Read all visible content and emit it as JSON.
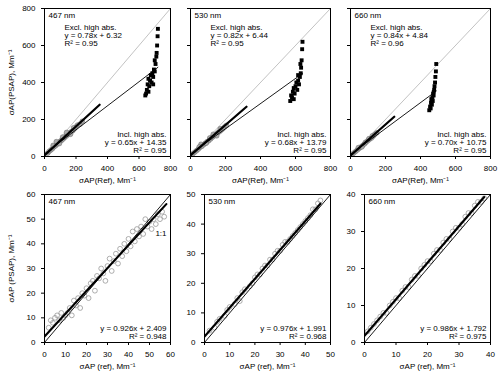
{
  "chart_data": [
    {
      "type": "scatter",
      "xlim": [
        0,
        800
      ],
      "ylim": [
        0,
        800
      ],
      "xticks": [
        0,
        200,
        400,
        600,
        800
      ],
      "yticks": [
        0,
        200,
        400,
        600,
        800
      ],
      "xlabel": "σAP(Ref), Mm⁻¹",
      "ylabel": "σAP(PSAP), Mm⁻¹",
      "annotations": {
        "panel": "467 nm",
        "upper": [
          "Excl. high abs.",
          "y = 0.78x + 6.32",
          "R² = 0.95"
        ],
        "lower": [
          "Incl. high abs.",
          "y = 0.65x + 14.35",
          "R² = 0.95"
        ]
      },
      "series": [
        {
          "type": "line",
          "line_style": "solid",
          "color": "#bbbbbb",
          "x": [
            0,
            800
          ],
          "values": [
            0,
            800
          ]
        },
        {
          "type": "scatter",
          "marker": "circle",
          "color": "#aaaaaa",
          "x": [
            20,
            30,
            40,
            50,
            60,
            70,
            80,
            90,
            100,
            110,
            120,
            130,
            140,
            150,
            160,
            170,
            180,
            190,
            200,
            75,
            95,
            140,
            165,
            185,
            55,
            115,
            210,
            225,
            240
          ],
          "values": [
            18,
            28,
            35,
            42,
            52,
            58,
            66,
            75,
            82,
            88,
            96,
            104,
            112,
            120,
            128,
            134,
            140,
            150,
            160,
            80,
            70,
            130,
            120,
            155,
            60,
            105,
            170,
            175,
            190
          ]
        },
        {
          "type": "scatter",
          "marker": "square",
          "color": "#000000",
          "x": [
            640,
            650,
            655,
            660,
            665,
            670,
            675,
            680,
            685,
            690,
            695,
            700,
            705,
            700,
            710,
            715,
            718,
            720,
            660,
            690,
            712,
            645
          ],
          "values": [
            330,
            360,
            390,
            420,
            380,
            410,
            440,
            400,
            450,
            430,
            470,
            460,
            500,
            520,
            540,
            600,
            650,
            690,
            350,
            390,
            560,
            340
          ]
        },
        {
          "type": "line",
          "line_style": "thick",
          "color": "#000000",
          "x": [
            0,
            350
          ],
          "values": [
            6,
            280
          ]
        },
        {
          "type": "line",
          "line_style": "solid",
          "color": "#000000",
          "x": [
            0,
            720
          ],
          "values": [
            14,
            482
          ]
        }
      ]
    },
    {
      "type": "scatter",
      "xlim": [
        0,
        800
      ],
      "ylim": [
        0,
        800
      ],
      "xticks": [
        0,
        200,
        400,
        600,
        800
      ],
      "yticks": [
        0,
        200,
        400,
        600,
        800
      ],
      "tick_labels": "x",
      "xlabel": "σAP(Ref), Mm⁻¹",
      "annotations": {
        "panel": "530 nm",
        "upper": [
          "Excl. high abs.",
          "y = 0.82x + 6.44",
          "R² = 0.95"
        ],
        "lower": [
          "Incl. high abs.",
          "y = 0.68x + 13.79",
          "R² = 0.95"
        ]
      },
      "series": [
        {
          "type": "line",
          "line_style": "solid",
          "color": "#bbbbbb",
          "x": [
            0,
            800
          ],
          "values": [
            0,
            800
          ]
        },
        {
          "type": "scatter",
          "marker": "circle",
          "color": "#aaaaaa",
          "x": [
            15,
            25,
            35,
            45,
            55,
            65,
            75,
            85,
            95,
            105,
            115,
            125,
            135,
            145,
            155,
            165,
            175,
            185,
            60,
            90,
            130,
            150,
            170,
            50,
            110,
            195,
            205
          ],
          "values": [
            16,
            24,
            32,
            40,
            50,
            55,
            64,
            72,
            80,
            86,
            95,
            104,
            112,
            118,
            128,
            134,
            142,
            150,
            66,
            72,
            120,
            112,
            150,
            52,
            100,
            160,
            168
          ]
        },
        {
          "type": "scatter",
          "marker": "square",
          "color": "#000000",
          "x": [
            570,
            580,
            585,
            590,
            595,
            600,
            605,
            610,
            615,
            620,
            625,
            630,
            632,
            635,
            638,
            640,
            590,
            615,
            628,
            575
          ],
          "values": [
            300,
            320,
            350,
            370,
            340,
            380,
            400,
            360,
            410,
            390,
            430,
            450,
            480,
            520,
            580,
            620,
            310,
            440,
            500,
            330
          ]
        },
        {
          "type": "line",
          "line_style": "thick",
          "color": "#000000",
          "x": [
            0,
            320
          ],
          "values": [
            6,
            269
          ]
        },
        {
          "type": "line",
          "line_style": "solid",
          "color": "#000000",
          "x": [
            0,
            640
          ],
          "values": [
            14,
            449
          ]
        }
      ]
    },
    {
      "type": "scatter",
      "xlim": [
        0,
        800
      ],
      "ylim": [
        0,
        800
      ],
      "xticks": [
        0,
        200,
        400,
        600,
        800
      ],
      "yticks": [
        0,
        200,
        400,
        600,
        800
      ],
      "tick_labels": "x",
      "xlabel": "σAP(Ref), Mm⁻¹",
      "annotations": {
        "panel": "660 nm",
        "upper": [
          "Excl. high abs.",
          "y = 0.84x + 4.84",
          "R² = 0.96"
        ],
        "lower": [
          "Incl. high abs.",
          "y = 0.70x + 10.75",
          "R² = 0.95"
        ]
      },
      "series": [
        {
          "type": "line",
          "line_style": "solid",
          "color": "#bbbbbb",
          "x": [
            0,
            800
          ],
          "values": [
            0,
            800
          ]
        },
        {
          "type": "scatter",
          "marker": "circle",
          "color": "#aaaaaa",
          "x": [
            10,
            20,
            30,
            40,
            50,
            60,
            70,
            80,
            90,
            100,
            110,
            120,
            130,
            45,
            65,
            85,
            105,
            125,
            140,
            150
          ],
          "values": [
            12,
            20,
            28,
            36,
            44,
            52,
            60,
            68,
            78,
            86,
            94,
            100,
            110,
            48,
            52,
            76,
            96,
            112,
            120,
            128
          ]
        },
        {
          "type": "scatter",
          "marker": "square",
          "color": "#000000",
          "x": [
            450,
            455,
            460,
            462,
            465,
            468,
            470,
            472,
            475,
            478,
            480,
            483,
            485,
            488,
            490,
            458,
            476
          ],
          "values": [
            250,
            270,
            290,
            310,
            280,
            320,
            300,
            340,
            330,
            360,
            380,
            400,
            430,
            460,
            500,
            260,
            350
          ]
        },
        {
          "type": "line",
          "line_style": "thick",
          "color": "#000000",
          "x": [
            0,
            250
          ],
          "values": [
            5,
            215
          ]
        },
        {
          "type": "line",
          "line_style": "solid",
          "color": "#000000",
          "x": [
            0,
            490
          ],
          "values": [
            11,
            354
          ]
        }
      ]
    },
    {
      "type": "scatter",
      "xlim": [
        0,
        60
      ],
      "ylim": [
        0,
        60
      ],
      "xticks": [
        0,
        10,
        20,
        30,
        40,
        50,
        60
      ],
      "yticks": [
        0,
        10,
        20,
        30,
        40,
        50,
        60
      ],
      "xlabel": "σAP (ref), Mm⁻¹",
      "ylabel": "σAP (PSAP), Mm⁻¹",
      "annotations": {
        "panel": "467 nm",
        "line": "1:1",
        "lower": [
          "y = 0.926x + 2.409",
          "R² = 0.948"
        ]
      },
      "series": [
        {
          "type": "scatter",
          "marker": "open-circle",
          "color": "#999999",
          "x": [
            2,
            3,
            4,
            5,
            6,
            7,
            8,
            9,
            10,
            11,
            12,
            13,
            14,
            15,
            16,
            17,
            18,
            19,
            20,
            21,
            22,
            23,
            24,
            25,
            26,
            27,
            28,
            29,
            30,
            31,
            32,
            33,
            34,
            35,
            36,
            37,
            38,
            39,
            40,
            41,
            42,
            43,
            44,
            45,
            46,
            47,
            48,
            49,
            50,
            51,
            52,
            53,
            54,
            55,
            56,
            57
          ],
          "values": [
            6,
            9,
            8,
            10,
            11,
            9,
            12,
            10,
            11,
            12,
            14,
            11,
            17,
            15,
            18,
            14,
            20,
            19,
            22,
            18,
            24,
            25,
            21,
            27,
            26,
            30,
            28,
            25,
            31,
            34,
            29,
            33,
            36,
            32,
            38,
            35,
            40,
            37,
            42,
            39,
            45,
            41,
            46,
            43,
            47,
            44,
            50,
            47,
            49,
            46,
            50,
            48,
            52,
            50,
            53,
            51
          ]
        },
        {
          "type": "line",
          "line_style": "solid",
          "color": "#000000",
          "x": [
            0,
            60
          ],
          "values": [
            0,
            60
          ]
        },
        {
          "type": "line",
          "line_style": "thick",
          "color": "#000000",
          "x": [
            0,
            58
          ],
          "values": [
            2.4,
            56.1
          ]
        }
      ]
    },
    {
      "type": "scatter",
      "xlim": [
        0,
        50
      ],
      "ylim": [
        0,
        50
      ],
      "xticks": [
        0,
        10,
        20,
        30,
        40,
        50
      ],
      "yticks": [
        0,
        10,
        20,
        30,
        40,
        50
      ],
      "xlabel": "σAP (ref), Mm⁻¹",
      "annotations": {
        "panel": "530 nm",
        "lower": [
          "y = 0.976x + 1.991",
          "R² = 0.968"
        ]
      },
      "series": [
        {
          "type": "scatter",
          "marker": "open-circle",
          "color": "#999999",
          "x": [
            2,
            4,
            5,
            6,
            8,
            9,
            10,
            12,
            13,
            14,
            15,
            16,
            18,
            19,
            20,
            21,
            22,
            23,
            24,
            25,
            26,
            27,
            28,
            29,
            30,
            31,
            32,
            33,
            34,
            35,
            36,
            37,
            38,
            39,
            40,
            41,
            42,
            43,
            44,
            45,
            46
          ],
          "values": [
            4,
            5,
            7,
            8,
            9,
            11,
            12,
            13,
            15,
            14,
            17,
            18,
            19,
            20,
            22,
            23,
            23,
            25,
            26,
            26,
            28,
            28,
            30,
            31,
            31,
            33,
            34,
            34,
            35,
            36,
            37,
            38,
            39,
            40,
            41,
            42,
            43,
            45,
            45,
            47,
            48
          ]
        },
        {
          "type": "line",
          "line_style": "solid",
          "color": "#000000",
          "x": [
            0,
            50
          ],
          "values": [
            0,
            50
          ]
        },
        {
          "type": "line",
          "line_style": "thick",
          "color": "#000000",
          "x": [
            0,
            46
          ],
          "values": [
            2,
            46.9
          ]
        }
      ]
    },
    {
      "type": "scatter",
      "xlim": [
        0,
        40
      ],
      "ylim": [
        0,
        40
      ],
      "xticks": [
        0,
        10,
        20,
        30,
        40
      ],
      "yticks": [
        0,
        10,
        20,
        30,
        40
      ],
      "xlabel": "σAP (ref), Mm⁻¹",
      "annotations": {
        "panel": "660 nm",
        "lower": [
          "y = 0.986x + 1.792",
          "R² = 0.975"
        ]
      },
      "series": [
        {
          "type": "scatter",
          "marker": "open-circle",
          "color": "#999999",
          "x": [
            1,
            2,
            3,
            4,
            5,
            6,
            7,
            8,
            9,
            10,
            11,
            12,
            13,
            14,
            15,
            16,
            17,
            18,
            19,
            20,
            21,
            22,
            23,
            24,
            25,
            26,
            27,
            28,
            29,
            30,
            31,
            32,
            33,
            34,
            35,
            36,
            37,
            38
          ],
          "values": [
            3,
            4,
            5,
            6,
            7,
            8,
            8,
            10,
            11,
            12,
            12,
            14,
            15,
            15,
            17,
            18,
            18,
            20,
            21,
            22,
            22,
            24,
            25,
            25,
            27,
            28,
            28,
            30,
            31,
            31,
            32,
            34,
            35,
            35,
            37,
            38,
            38,
            39
          ]
        },
        {
          "type": "line",
          "line_style": "solid",
          "color": "#000000",
          "x": [
            0,
            40
          ],
          "values": [
            0,
            40
          ]
        },
        {
          "type": "line",
          "line_style": "thick",
          "color": "#000000",
          "x": [
            0,
            38
          ],
          "values": [
            1.8,
            39.3
          ]
        }
      ]
    }
  ]
}
